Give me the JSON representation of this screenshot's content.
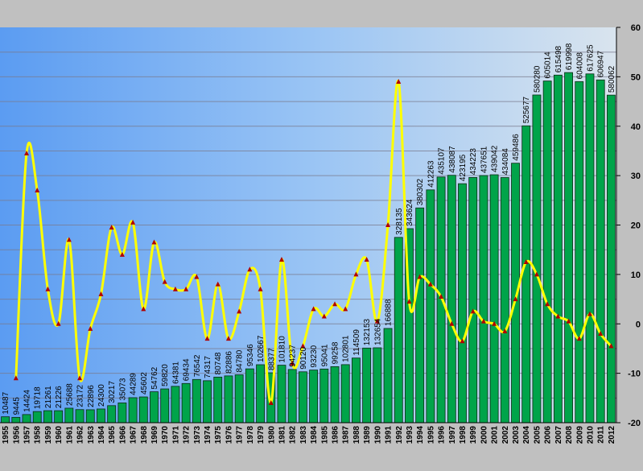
{
  "chart_data": {
    "type": "bar",
    "categories": [
      "1955",
      "1956",
      "1957",
      "1958",
      "1959",
      "1960",
      "1961",
      "1962",
      "1963",
      "1964",
      "1965",
      "1966",
      "1967",
      "1968",
      "1969",
      "1970",
      "1971",
      "1972",
      "1973",
      "1974",
      "1975",
      "1976",
      "1977",
      "1978",
      "1979",
      "1980",
      "1981",
      "1982",
      "1983",
      "1984",
      "1985",
      "1986",
      "1987",
      "1988",
      "1989",
      "1990",
      "1991",
      "1992",
      "1993",
      "1994",
      "1995",
      "1996",
      "1997",
      "1998",
      "1999",
      "2000",
      "2001",
      "2002",
      "2003",
      "2004",
      "2005",
      "2006",
      "2007",
      "2008",
      "2009",
      "2010",
      "2011",
      "2012"
    ],
    "series": [
      {
        "kind": "bar",
        "values": [
          10487,
          9445,
          14424,
          19718,
          21261,
          21226,
          25688,
          23172,
          22896,
          24300,
          30217,
          35073,
          44289,
          45602,
          54762,
          59820,
          64381,
          69434,
          76542,
          74317,
          80748,
          82886,
          84780,
          95346,
          102667,
          88377,
          101810,
          94237,
          90120,
          93230,
          95041,
          99258,
          102801,
          114509,
          132153,
          132654,
          166888,
          328135,
          343624,
          380302,
          412263,
          435107,
          438087,
          423195,
          434223,
          437651,
          439042,
          434084,
          459486,
          525677,
          580280,
          605014,
          615498,
          619998,
          604008,
          617625,
          606947,
          580062
        ],
        "color": "#00a44a"
      },
      {
        "kind": "line",
        "axis": "right",
        "values": [
          null,
          -11,
          34.5,
          27,
          7,
          0,
          17,
          -11,
          -1,
          6,
          19.5,
          14,
          20.5,
          3,
          16.5,
          8.5,
          7,
          7,
          9.5,
          -3,
          8,
          -3,
          2.5,
          11,
          7,
          -16,
          13,
          -8,
          -4.5,
          3,
          1.5,
          4,
          3,
          10,
          13,
          0.5,
          20,
          49,
          4.5,
          9.5,
          8,
          5.5,
          0,
          -3.5,
          2.5,
          0.5,
          0,
          -1.5,
          5,
          12.5,
          10,
          4,
          1.5,
          0.5,
          -3,
          2,
          -2,
          -4.5
        ],
        "color": "#ffff00",
        "marker_color": "#b00000"
      }
    ],
    "ylim_left": [
      0,
      700000
    ],
    "ylim_right": [
      -20,
      60
    ],
    "right_ticks": [
      "-20",
      "-10",
      "0",
      "10",
      "20",
      "30",
      "40",
      "50",
      "60"
    ],
    "grid": true
  }
}
